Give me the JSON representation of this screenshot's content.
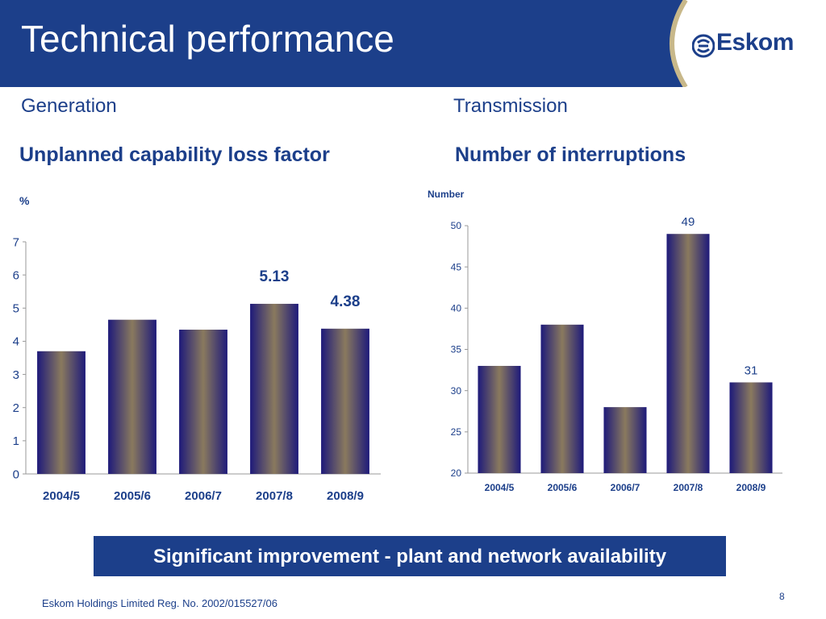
{
  "header": {
    "title": "Technical performance",
    "logo_text": "Eskom"
  },
  "sections": {
    "left": "Generation",
    "right": "Transmission"
  },
  "colors": {
    "header_bg": "#1c3f8a",
    "text": "#1c3f8a",
    "bar_dark": "#1e1a7a",
    "bar_light": "#8a7a5e"
  },
  "chart_data": [
    {
      "type": "bar",
      "title": "Unplanned capability loss factor",
      "ylabel": "%",
      "categories": [
        "2004/5",
        "2005/6",
        "2006/7",
        "2007/8",
        "2008/9"
      ],
      "values": [
        3.7,
        4.65,
        4.35,
        5.13,
        4.38
      ],
      "data_labels": [
        "",
        "",
        "",
        "5.13",
        "4.38"
      ],
      "ylim": [
        0,
        7
      ],
      "yticks": [
        "0",
        "1",
        "2",
        "3",
        "4",
        "5",
        "6",
        "7"
      ],
      "grid": false
    },
    {
      "type": "bar",
      "title": "Number of interruptions",
      "ylabel": "Number",
      "categories": [
        "2004/5",
        "2005/6",
        "2006/7",
        "2007/8",
        "2008/9"
      ],
      "values": [
        33,
        38,
        28,
        49,
        31
      ],
      "data_labels": [
        "",
        "",
        "",
        "49",
        "31"
      ],
      "ylim": [
        20,
        50
      ],
      "yticks": [
        "20",
        "25",
        "30",
        "35",
        "40",
        "45",
        "50"
      ],
      "grid": false
    }
  ],
  "banner": "Significant improvement - plant and network availability",
  "footer": "Eskom Holdings Limited Reg. No. 2002/015527/06",
  "page_number": "8"
}
